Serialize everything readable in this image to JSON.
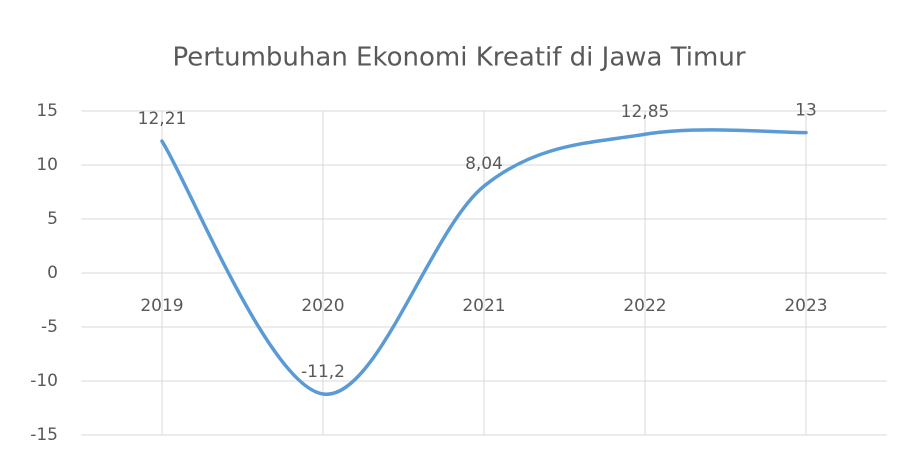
{
  "chart_data": {
    "type": "line",
    "title": "Pertumbuhan Ekonomi Kreatif di Jawa Timur",
    "categories": [
      "2019",
      "2020",
      "2021",
      "2022",
      "2023"
    ],
    "values": [
      12.21,
      -11.2,
      8.04,
      12.85,
      13
    ],
    "value_labels": [
      "12,21",
      "-11,2",
      "8,04",
      "12,85",
      "13"
    ],
    "color": "#5b9bd5",
    "smooth": true,
    "ylim": [
      -15,
      15
    ],
    "yticks": [
      -15,
      -10,
      -5,
      0,
      5,
      10,
      15
    ],
    "grid": true
  }
}
